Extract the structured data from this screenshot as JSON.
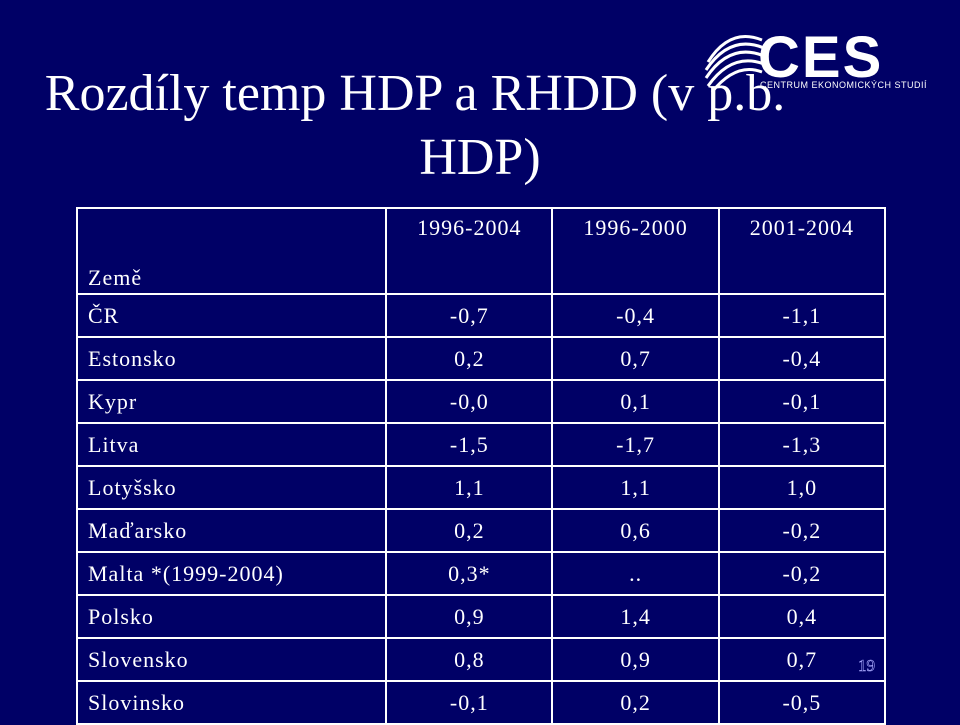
{
  "title": {
    "line1": "Rozdíly temp HDP a RHDD (v p.b.",
    "line2": "HDP)"
  },
  "logo": {
    "name": "CES",
    "subtitle": "CENTRUM EKONOMICKÝCH STUDIÍ"
  },
  "table": {
    "header_country": "Země",
    "columns": [
      "1996-2004",
      "1996-2000",
      "2001-2004"
    ],
    "rows": [
      {
        "country": "ČR",
        "values": [
          "-0,7",
          "-0,4",
          "-1,1"
        ]
      },
      {
        "country": "Estonsko",
        "values": [
          "0,2",
          "0,7",
          "-0,4"
        ]
      },
      {
        "country": "Kypr",
        "values": [
          "-0,0",
          "0,1",
          "-0,1"
        ]
      },
      {
        "country": "Litva",
        "values": [
          "-1,5",
          "-1,7",
          "-1,3"
        ]
      },
      {
        "country": "Lotyšsko",
        "values": [
          "1,1",
          "1,1",
          "1,0"
        ]
      },
      {
        "country": "Maďarsko",
        "values": [
          "0,2",
          "0,6",
          "-0,2"
        ]
      },
      {
        "country": "Malta *(1999-2004)",
        "values": [
          "0,3*",
          "..",
          "-0,2"
        ]
      },
      {
        "country": "Polsko",
        "values": [
          "0,9",
          "1,4",
          "0,4"
        ]
      },
      {
        "country": "Slovensko",
        "values": [
          "0,8",
          "0,9",
          "0,7"
        ]
      },
      {
        "country": "Slovinsko",
        "values": [
          "-0,1",
          "0,2",
          "-0,5"
        ]
      }
    ]
  },
  "page_number": "19",
  "colors": {
    "background": "#000066",
    "text": "#ffffff"
  }
}
